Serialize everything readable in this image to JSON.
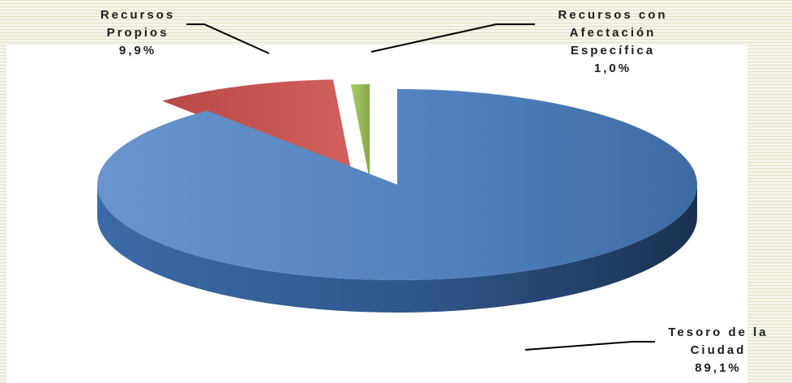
{
  "chart_data": {
    "type": "pie",
    "style": "3d-exploded",
    "slices": [
      {
        "label_lines": [
          "Tesoro de la",
          "Ciudad"
        ],
        "pct_label": "89,1%",
        "value": 89.1,
        "color": "#4f81bd"
      },
      {
        "label_lines": [
          "Recursos",
          "Propios"
        ],
        "pct_label": "9,9%",
        "value": 9.9,
        "color": "#c0504d"
      },
      {
        "label_lines": [
          "Recursos con",
          "Afectación",
          "Específica"
        ],
        "pct_label": "1,0%",
        "value": 1.0,
        "color": "#9bbb59"
      }
    ]
  }
}
